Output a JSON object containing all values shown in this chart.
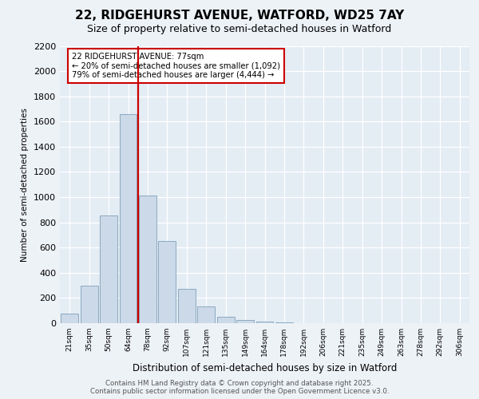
{
  "title_line1": "22, RIDGEHURST AVENUE, WATFORD, WD25 7AY",
  "title_line2": "Size of property relative to semi-detached houses in Watford",
  "xlabel": "Distribution of semi-detached houses by size in Watford",
  "ylabel": "Number of semi-detached properties",
  "categories": [
    "21sqm",
    "35sqm",
    "50sqm",
    "64sqm",
    "78sqm",
    "92sqm",
    "107sqm",
    "121sqm",
    "135sqm",
    "149sqm",
    "164sqm",
    "178sqm",
    "192sqm",
    "206sqm",
    "221sqm",
    "235sqm",
    "249sqm",
    "263sqm",
    "278sqm",
    "292sqm",
    "306sqm"
  ],
  "values": [
    75,
    300,
    855,
    1660,
    1010,
    655,
    270,
    130,
    50,
    25,
    10,
    5,
    3,
    2,
    1,
    1,
    1,
    1,
    0,
    0,
    2
  ],
  "bar_color": "#ccd9e8",
  "bar_edge_color": "#8aaac0",
  "vline_pos": 3.5,
  "vline_color": "#cc0000",
  "annotation_title": "22 RIDGEHURST AVENUE: 77sqm",
  "annotation_line1": "← 20% of semi-detached houses are smaller (1,092)",
  "annotation_line2": "79% of semi-detached houses are larger (4,444) →",
  "annotation_box_facecolor": "#ffffff",
  "annotation_box_edgecolor": "#cc0000",
  "ylim": [
    0,
    2200
  ],
  "yticks": [
    0,
    200,
    400,
    600,
    800,
    1000,
    1200,
    1400,
    1600,
    1800,
    2000,
    2200
  ],
  "footer_line1": "Contains HM Land Registry data © Crown copyright and database right 2025.",
  "footer_line2": "Contains public sector information licensed under the Open Government Licence v3.0.",
  "fig_bg": "#edf2f7",
  "plot_bg": "#e4ecf4",
  "grid_color": "#ffffff"
}
